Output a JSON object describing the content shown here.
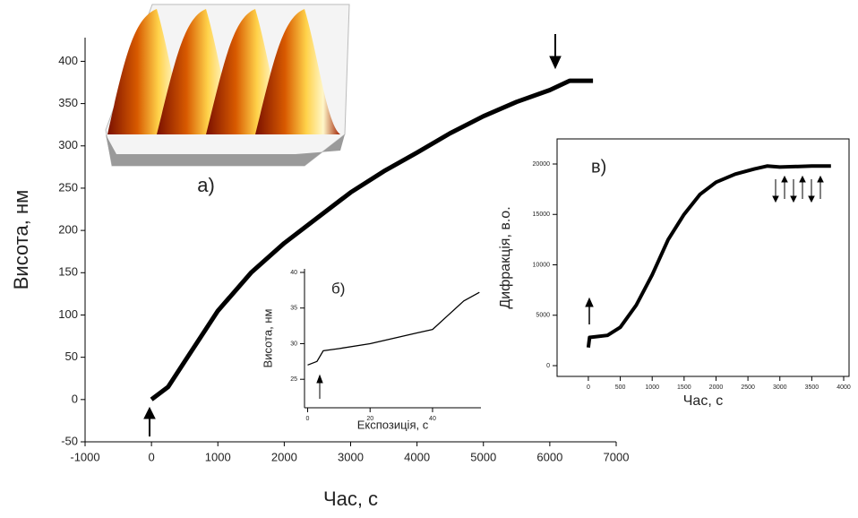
{
  "chart_data": [
    {
      "type": "line",
      "xlabel": "Час, с",
      "ylabel": "Висота, нм",
      "annotations": [
        "а)"
      ],
      "xlim": [
        -1000,
        7000
      ],
      "ylim": [
        -50,
        428
      ],
      "xticks": [
        -1000,
        0,
        1000,
        2000,
        3000,
        4000,
        5000,
        6000,
        7000
      ],
      "yticks": [
        -50,
        0,
        50,
        100,
        150,
        200,
        250,
        300,
        350,
        400
      ],
      "color": "#000000",
      "x": [
        0,
        250,
        500,
        1000,
        1500,
        2000,
        2500,
        3000,
        3500,
        4000,
        4500,
        5000,
        5500,
        6000,
        6300,
        6650
      ],
      "values": [
        0,
        15,
        45,
        105,
        150,
        185,
        215,
        245,
        270,
        292,
        315,
        335,
        352,
        366,
        377,
        377
      ]
    },
    {
      "type": "line",
      "label": "б)",
      "xlabel": "Експозиція, с",
      "ylabel": "Висота, нм",
      "xlim": [
        -1,
        55.5
      ],
      "ylim": [
        21,
        40.5
      ],
      "xticks": [
        0,
        20,
        40
      ],
      "yticks": [
        25,
        30,
        35,
        40
      ],
      "color": "#000000",
      "x": [
        0,
        3,
        5,
        10,
        20,
        30,
        35,
        40,
        45,
        50,
        55
      ],
      "values": [
        27,
        27.5,
        29,
        29.3,
        30,
        31,
        31.5,
        32,
        34,
        36,
        37.2
      ]
    },
    {
      "type": "line",
      "label": "в)",
      "xlabel": "Час, с",
      "ylabel": "Дифракція, в.о.",
      "xlim": [
        -490,
        4084
      ],
      "ylim": [
        -1067,
        22489
      ],
      "xticks": [
        0,
        500,
        1000,
        1500,
        2000,
        2500,
        3000,
        3500,
        4000
      ],
      "yticks": [
        0,
        5000,
        10000,
        15000,
        20000
      ],
      "color": "#000000",
      "x": [
        0,
        20,
        300,
        500,
        750,
        1000,
        1250,
        1500,
        1750,
        2000,
        2300,
        2600,
        2800,
        3000,
        3500,
        3800
      ],
      "values": [
        1800,
        2800,
        3000,
        3800,
        6000,
        9000,
        12500,
        15000,
        17000,
        18200,
        19000,
        19500,
        19800,
        19700,
        19800,
        19800
      ]
    }
  ]
}
